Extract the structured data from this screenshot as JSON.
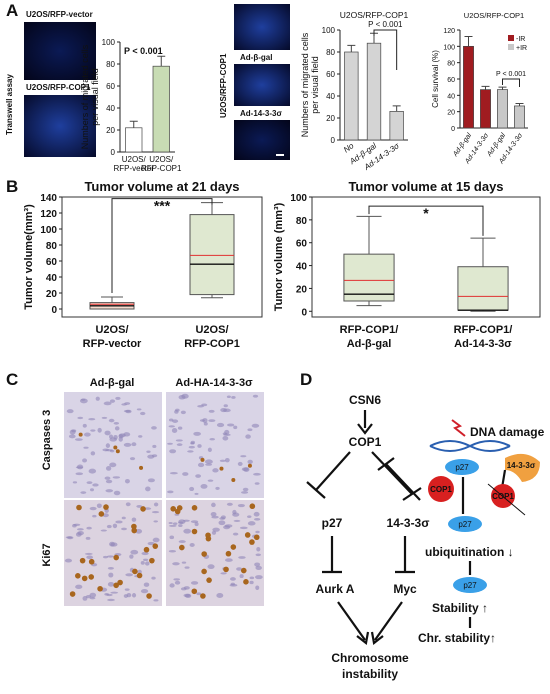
{
  "panel_a": {
    "label": "A",
    "side_label": "Transwell assay",
    "image_labels": [
      "U2OS/RFP-vector",
      "U2OS/RFP-COP1"
    ],
    "chart1": {
      "ylabel": [
        "Numbers of migrated cells",
        "per visual field"
      ],
      "ylim": [
        0,
        100
      ],
      "yticks": [
        0,
        20,
        40,
        60,
        80,
        100
      ],
      "categories": [
        [
          "U2OS/",
          "RFP-vector"
        ],
        [
          "U2OS/",
          "RFP-COP1"
        ]
      ],
      "values": [
        22,
        78
      ],
      "errors": [
        6,
        9
      ],
      "colors": [
        "#ffffff",
        "#c8dcb4"
      ],
      "annotation": "P < 0.001"
    },
    "side_label2": "U2OS/RFP-COP1",
    "image_labels2": [
      "Ad-β-gal",
      "Ad-14-3-3σ"
    ],
    "chart2": {
      "title": "U2OS/RFP-COP1",
      "ylabel": [
        "Numbers of migrated cells",
        "per visual field"
      ],
      "ylim": [
        0,
        100
      ],
      "yticks": [
        0,
        20,
        40,
        60,
        80,
        100
      ],
      "categories": [
        "No",
        "Ad-β-gal",
        "Ad-14-3-3σ"
      ],
      "values": [
        80,
        88,
        26
      ],
      "errors": [
        6,
        9,
        5
      ],
      "colors": [
        "#d4d4d4",
        "#d4d4d4",
        "#d4d4d4"
      ],
      "annotation": "P < 0.001"
    },
    "chart3": {
      "title": "U2OS/RFP-COP1",
      "ylabel": [
        "Cell survival (%)"
      ],
      "ylim": [
        0,
        120
      ],
      "yticks": [
        0,
        20,
        40,
        60,
        80,
        100,
        120
      ],
      "categories": [
        "Ad-β-gal",
        "Ad-14-3-3σ",
        "Ad-β-gal",
        "Ad-14-3-3σ"
      ],
      "values": [
        100,
        47,
        47,
        27
      ],
      "errors": [
        12,
        4,
        3,
        3
      ],
      "colors": [
        "#a01c20",
        "#a01c20",
        "#c8c8c8",
        "#c8c8c8"
      ],
      "legend": [
        {
          "name": "-IR",
          "color": "#a01c20"
        },
        {
          "name": "+IR",
          "color": "#c8c8c8"
        }
      ],
      "annotation": "P < 0.001"
    }
  },
  "panel_b": {
    "label": "B",
    "charts": [
      {
        "title": "Tumor volume at 21 days",
        "ylabel": "Tumor volume(mm³)",
        "ylim": [
          -10,
          140
        ],
        "yticks": [
          0,
          20,
          40,
          60,
          80,
          100,
          120,
          140
        ],
        "categories": [
          [
            "U2OS/",
            "RFP-vector"
          ],
          [
            "U2OS/",
            "RFP-COP1"
          ]
        ],
        "boxes": [
          {
            "min": 0,
            "q1": 0,
            "median": 4,
            "q3": 8,
            "max": 15,
            "mean": 6
          },
          {
            "min": 14,
            "q1": 18,
            "median": 56,
            "q3": 118,
            "max": 133,
            "mean": 67
          }
        ],
        "colors": [
          "#f6dccf",
          "#dfe8d0"
        ],
        "annotation": "***"
      },
      {
        "title": "Tumor volume at 15 days",
        "ylabel": "Tumor volume (mm³)",
        "ylim": [
          -5,
          100
        ],
        "yticks": [
          0,
          20,
          40,
          60,
          80,
          100
        ],
        "categories": [
          [
            "RFP-COP1/",
            "Ad-β-gal"
          ],
          [
            "RFP-COP1/",
            "Ad-14-3-3σ"
          ]
        ],
        "boxes": [
          {
            "min": 5,
            "q1": 9,
            "median": 15,
            "q3": 50,
            "max": 83,
            "mean": 27
          },
          {
            "min": 0,
            "q1": 1,
            "median": 1,
            "q3": 39,
            "max": 64,
            "mean": 13
          }
        ],
        "colors": [
          "#dfe8d0",
          "#dfe8d0"
        ],
        "annotation": "*"
      }
    ]
  },
  "panel_c": {
    "label": "C",
    "columns": [
      "Ad-β-gal",
      "Ad-HA-14-3-3σ"
    ],
    "rows": [
      "Caspases 3",
      "Ki67"
    ]
  },
  "panel_d": {
    "label": "D",
    "nodes": [
      "CSN6",
      "COP1",
      "p27",
      "14-3-3σ",
      "Aurk A",
      "Myc",
      "Chromosome",
      "instability"
    ],
    "mechanism": [
      "DNA damage",
      "p27",
      "COP1",
      "14-3-3σ",
      "COP1",
      "p27",
      "ubiquitination ↓",
      "p27",
      "Stability ↑",
      "Chr. stability↑"
    ]
  }
}
